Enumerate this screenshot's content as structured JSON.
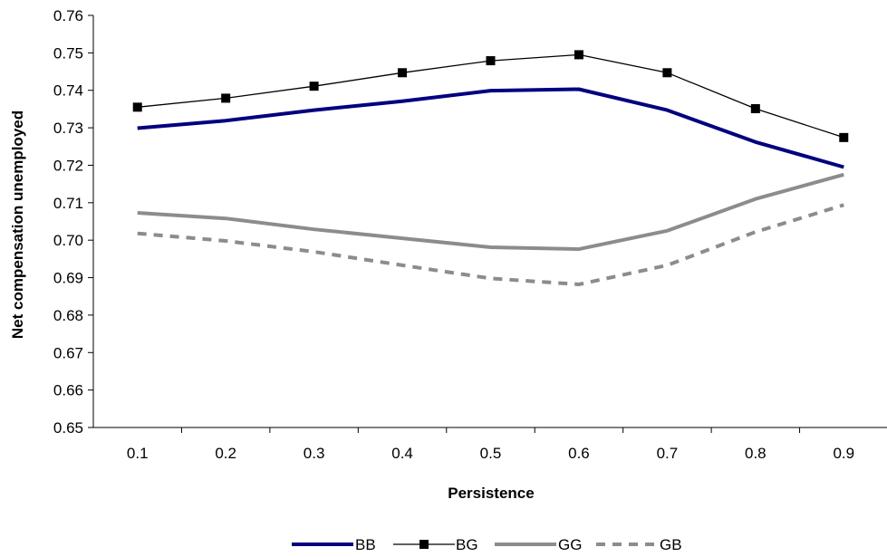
{
  "chart_data": {
    "type": "line",
    "title": "",
    "xlabel": "Persistence",
    "ylabel": "Net compensation unemployed",
    "categories": [
      "0.1",
      "0.2",
      "0.3",
      "0.4",
      "0.5",
      "0.6",
      "0.7",
      "0.8",
      "0.9"
    ],
    "ylim": [
      0.65,
      0.76
    ],
    "yticks": [
      "0.65",
      "0.66",
      "0.67",
      "0.68",
      "0.69",
      "0.70",
      "0.71",
      "0.72",
      "0.73",
      "0.74",
      "0.75",
      "0.76"
    ],
    "grid": false,
    "legend_position": "bottom",
    "series": [
      {
        "name": "BB",
        "color": "#000080",
        "style": "solid-thick",
        "marker": "none",
        "values": [
          0.7299,
          0.7319,
          0.7347,
          0.7371,
          0.7399,
          0.7403,
          0.7347,
          0.7262,
          0.7195
        ]
      },
      {
        "name": "BG",
        "color": "#000000",
        "style": "solid-thin",
        "marker": "square",
        "values": [
          0.7355,
          0.7379,
          0.7411,
          0.7447,
          0.7479,
          0.7495,
          0.7447,
          0.7351,
          0.7274
        ]
      },
      {
        "name": "GG",
        "color": "#8c8c8c",
        "style": "solid-thick",
        "marker": "none",
        "values": [
          0.7073,
          0.7058,
          0.7029,
          0.7005,
          0.6981,
          0.6976,
          0.7025,
          0.711,
          0.7175
        ]
      },
      {
        "name": "GB",
        "color": "#8c8c8c",
        "style": "dashed-thick",
        "marker": "none",
        "values": [
          0.7018,
          0.6998,
          0.6969,
          0.6933,
          0.6898,
          0.6882,
          0.6933,
          0.7022,
          0.7094
        ]
      }
    ]
  }
}
